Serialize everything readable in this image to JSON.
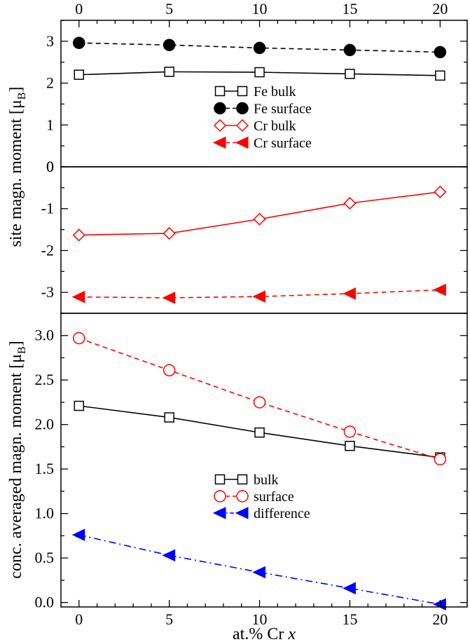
{
  "chart_data": [
    {
      "type": "line",
      "x": [
        0,
        5,
        10,
        15,
        20
      ],
      "xticks": [
        "0",
        "5",
        "10",
        "15",
        "20"
      ],
      "xlim": [
        -1,
        21.5
      ],
      "ylim": [
        0,
        3.5
      ],
      "yticks": [
        "0",
        "1",
        "2",
        "3"
      ],
      "ylabel_main": "site magn. moment [μ",
      "ylabel_sub": "B",
      "ylabel_end": "]",
      "legend_position": "center",
      "series": [
        {
          "name": "Fe bulk",
          "values": [
            2.2,
            2.27,
            2.26,
            2.22,
            2.18
          ],
          "color": "#000000",
          "marker": "square-open",
          "line": "solid"
        },
        {
          "name": "Fe surface",
          "values": [
            2.96,
            2.91,
            2.84,
            2.79,
            2.74
          ],
          "color": "#000000",
          "marker": "circle-filled",
          "line": "dashed"
        }
      ]
    },
    {
      "type": "line",
      "x": [
        0,
        5,
        10,
        15,
        20
      ],
      "xlim": [
        -1,
        21.5
      ],
      "ylim": [
        -3.5,
        0
      ],
      "yticks": [
        "-1",
        "-2",
        "-3"
      ],
      "series": [
        {
          "name": "Cr bulk",
          "values": [
            -1.63,
            -1.59,
            -1.25,
            -0.87,
            -0.6
          ],
          "color": "#ff0000",
          "marker": "diamond-open",
          "line": "solid"
        },
        {
          "name": "Cr surface",
          "values": [
            -3.11,
            -3.13,
            -3.1,
            -3.03,
            -2.94
          ],
          "color": "#ff0000",
          "marker": "triangle-left-filled",
          "line": "dashed"
        }
      ]
    },
    {
      "type": "line",
      "x": [
        0,
        5,
        10,
        15,
        20
      ],
      "xticks": [
        "0",
        "5",
        "10",
        "15",
        "20"
      ],
      "xlim": [
        -1,
        21.5
      ],
      "ylim": [
        -0.05,
        3.25
      ],
      "yticks": [
        "0.0",
        "0.5",
        "1.0",
        "1.5",
        "2.0",
        "2.5",
        "3.0"
      ],
      "ylabel_main": "conc. averaged magn. moment [μ",
      "ylabel_sub": "B",
      "ylabel_end": "]",
      "xlabel_main": "at.% Cr ",
      "xlabel_var": "x",
      "legend_position": "bottom-center",
      "series": [
        {
          "name": "bulk",
          "values": [
            2.21,
            2.08,
            1.91,
            1.76,
            1.63
          ],
          "color": "#000000",
          "marker": "square-open",
          "line": "solid"
        },
        {
          "name": "surface",
          "values": [
            2.97,
            2.61,
            2.25,
            1.92,
            1.61
          ],
          "color": "#ff0000",
          "marker": "circle-open",
          "line": "dashed"
        },
        {
          "name": "difference",
          "values": [
            0.76,
            0.53,
            0.34,
            0.16,
            -0.02
          ],
          "color": "#0000ff",
          "marker": "triangle-left-filled",
          "line": "dashdot"
        }
      ]
    }
  ]
}
